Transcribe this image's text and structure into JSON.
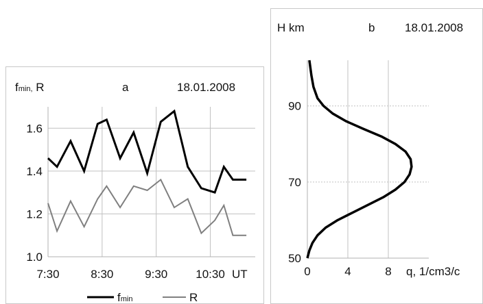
{
  "colors": {
    "fmin": "#000000",
    "R": "#7f7f7f",
    "grid": "#c0c0c0",
    "axis": "#b0b0b0"
  },
  "chart_data": [
    {
      "id": "a",
      "type": "line",
      "panel_label": "a",
      "date": "18.01.2008",
      "ylabel": "f_min, R",
      "ylabel_main": "f",
      "ylabel_sub": "min,",
      "ylabel_rest": " R",
      "xlabel": "UT",
      "ylim": [
        1.0,
        1.7
      ],
      "yticks": [
        "1.0",
        "1.2",
        "1.4",
        "1.6"
      ],
      "xticks": [
        "7:30",
        "8:30",
        "9:30",
        "10:30"
      ],
      "xlim_minutes": [
        7.5,
        11.33
      ],
      "legend": "bottom",
      "legend_fmin_main": "f",
      "legend_fmin_sub": "min",
      "legend_R": "R",
      "series": [
        {
          "name": "f_min",
          "x": [
            "7:30",
            "7:40",
            "7:55",
            "8:10",
            "8:25",
            "8:35",
            "8:50",
            "9:05",
            "9:20",
            "9:35",
            "9:50",
            "10:05",
            "10:20",
            "10:35",
            "10:45",
            "10:55",
            "11:10"
          ],
          "values": [
            1.46,
            1.42,
            1.54,
            1.4,
            1.62,
            1.64,
            1.46,
            1.58,
            1.39,
            1.63,
            1.68,
            1.42,
            1.32,
            1.3,
            1.42,
            1.36,
            1.36
          ]
        },
        {
          "name": "R",
          "x": [
            "7:30",
            "7:40",
            "7:55",
            "8:10",
            "8:25",
            "8:35",
            "8:50",
            "9:05",
            "9:20",
            "9:35",
            "9:50",
            "10:05",
            "10:20",
            "10:35",
            "10:45",
            "10:55",
            "11:10"
          ],
          "values": [
            1.25,
            1.12,
            1.26,
            1.14,
            1.27,
            1.33,
            1.23,
            1.33,
            1.31,
            1.36,
            1.23,
            1.27,
            1.11,
            1.17,
            1.24,
            1.1,
            1.1
          ]
        }
      ]
    },
    {
      "id": "b",
      "type": "line",
      "panel_label": "b",
      "date": "18.01.2008",
      "ylabel": "H km",
      "xlabel": "q, 1/cm3/c",
      "xlim": [
        0,
        12
      ],
      "ylim": [
        50,
        102
      ],
      "xticks": [
        "0",
        "4",
        "8"
      ],
      "yticks": [
        "50",
        "70",
        "90"
      ],
      "series": [
        {
          "name": "q",
          "x": [
            0.0,
            0.2,
            0.5,
            1.0,
            1.8,
            3.0,
            4.5,
            6.0,
            7.5,
            8.7,
            9.6,
            10.1,
            10.3,
            10.2,
            9.7,
            8.7,
            7.3,
            5.5,
            3.8,
            2.5,
            1.6,
            1.0,
            0.6,
            0.4,
            0.2
          ],
          "h": [
            50,
            52,
            54,
            56,
            58,
            60,
            62,
            64,
            66,
            68,
            70,
            72,
            74,
            76,
            78,
            80,
            82,
            84,
            86,
            88,
            90,
            92,
            95,
            98,
            102
          ]
        }
      ]
    }
  ]
}
